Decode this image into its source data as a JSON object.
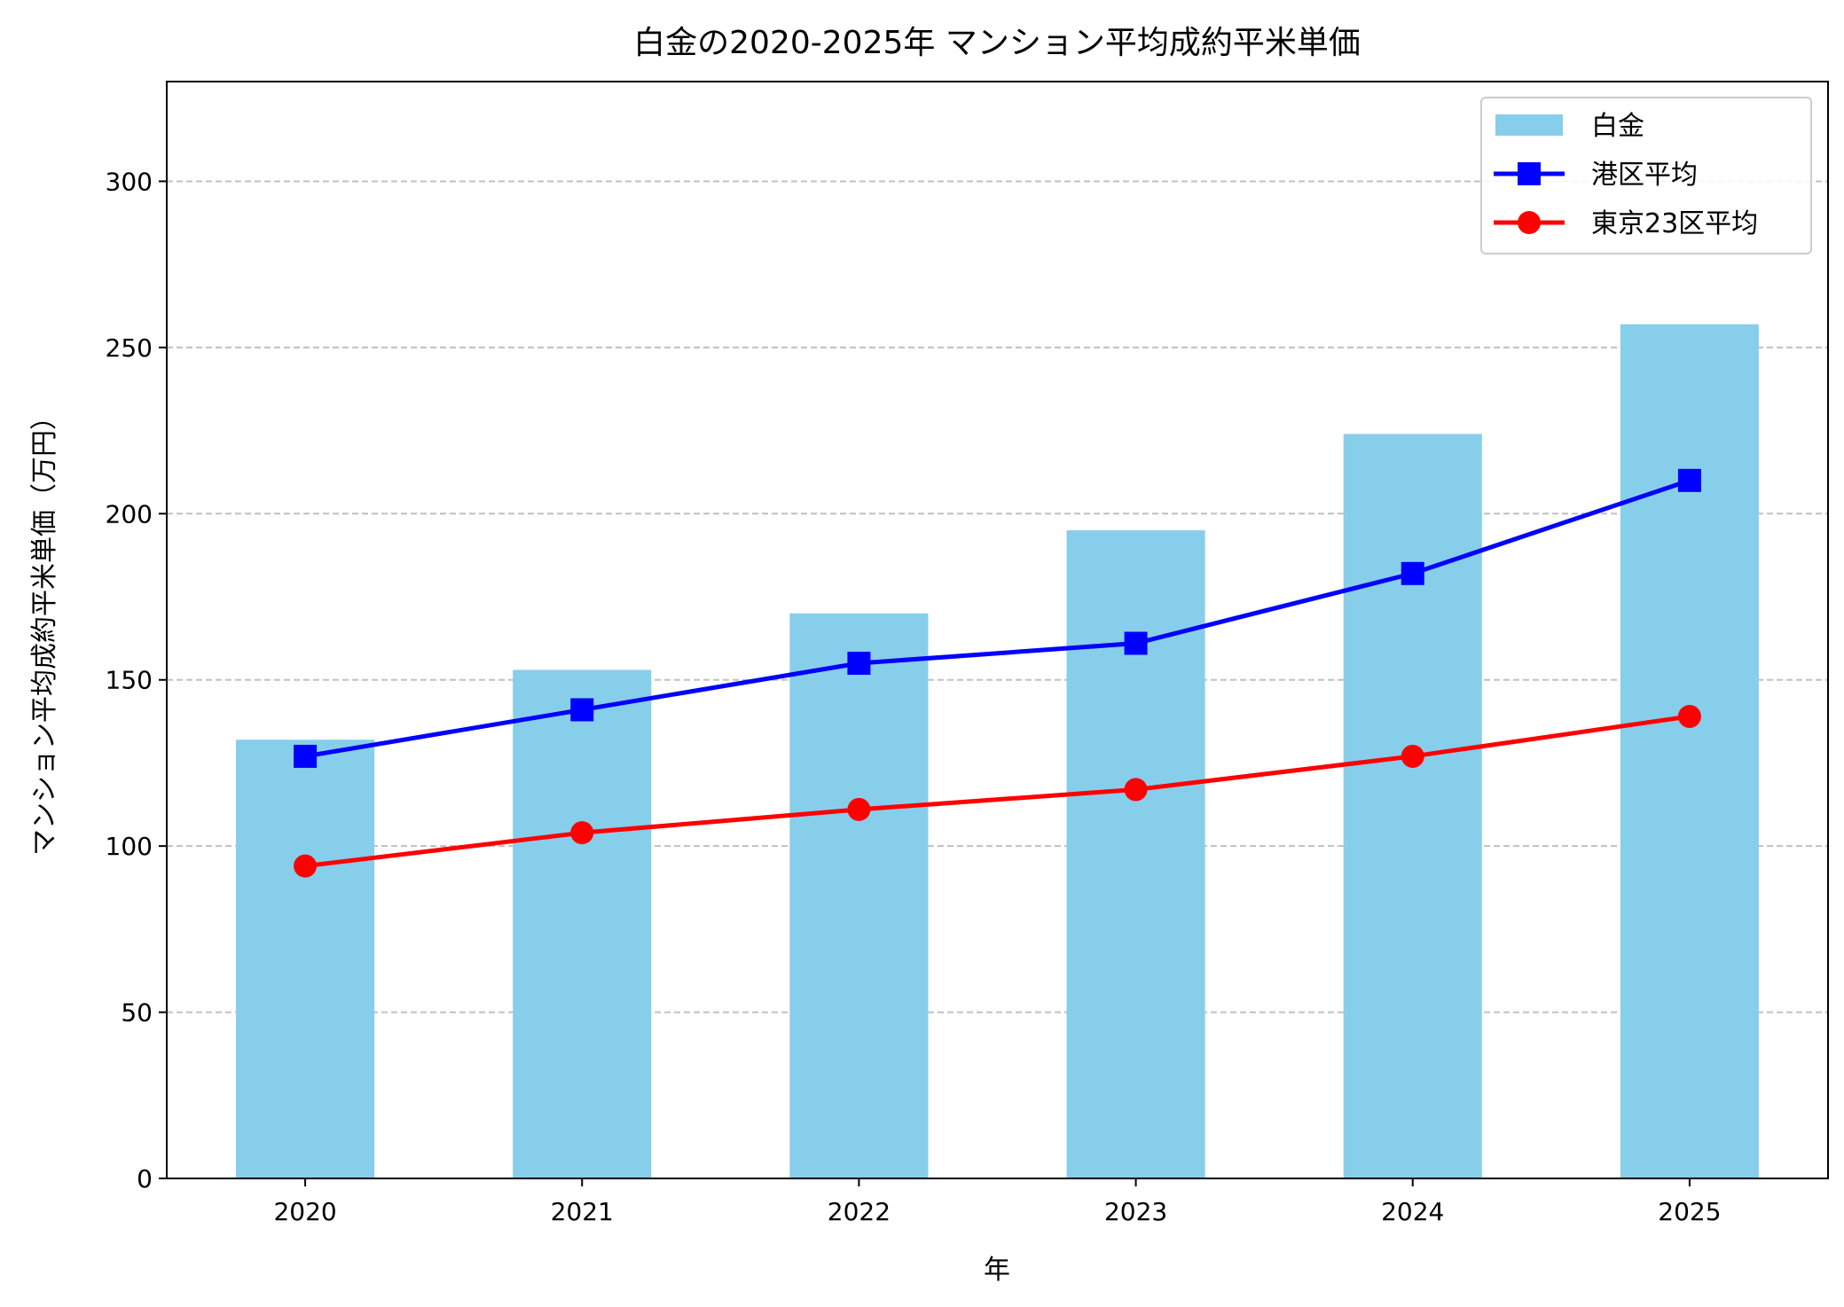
{
  "chart_data": {
    "type": "bar+line",
    "title": "白金の2020-2025年 マンション平均成約平米単価",
    "xlabel": "年",
    "ylabel": "マンション平均成約平米単価（万円）",
    "categories": [
      "2020",
      "2021",
      "2022",
      "2023",
      "2024",
      "2025"
    ],
    "ylim": [
      0,
      330
    ],
    "yticks": [
      0,
      50,
      100,
      150,
      200,
      250,
      300
    ],
    "grid": "y-dashed",
    "legend_position": "top-right",
    "series": [
      {
        "name": "白金",
        "kind": "bar",
        "color": "#87CEEB",
        "values": [
          132,
          153,
          170,
          195,
          224,
          257
        ]
      },
      {
        "name": "港区平均",
        "kind": "line",
        "marker": "square",
        "color": "#0000FF",
        "values": [
          127,
          141,
          155,
          161,
          182,
          210
        ]
      },
      {
        "name": "東京23区平均",
        "kind": "line",
        "marker": "circle",
        "color": "#FF0000",
        "values": [
          94,
          104,
          111,
          117,
          127,
          139
        ]
      }
    ]
  }
}
